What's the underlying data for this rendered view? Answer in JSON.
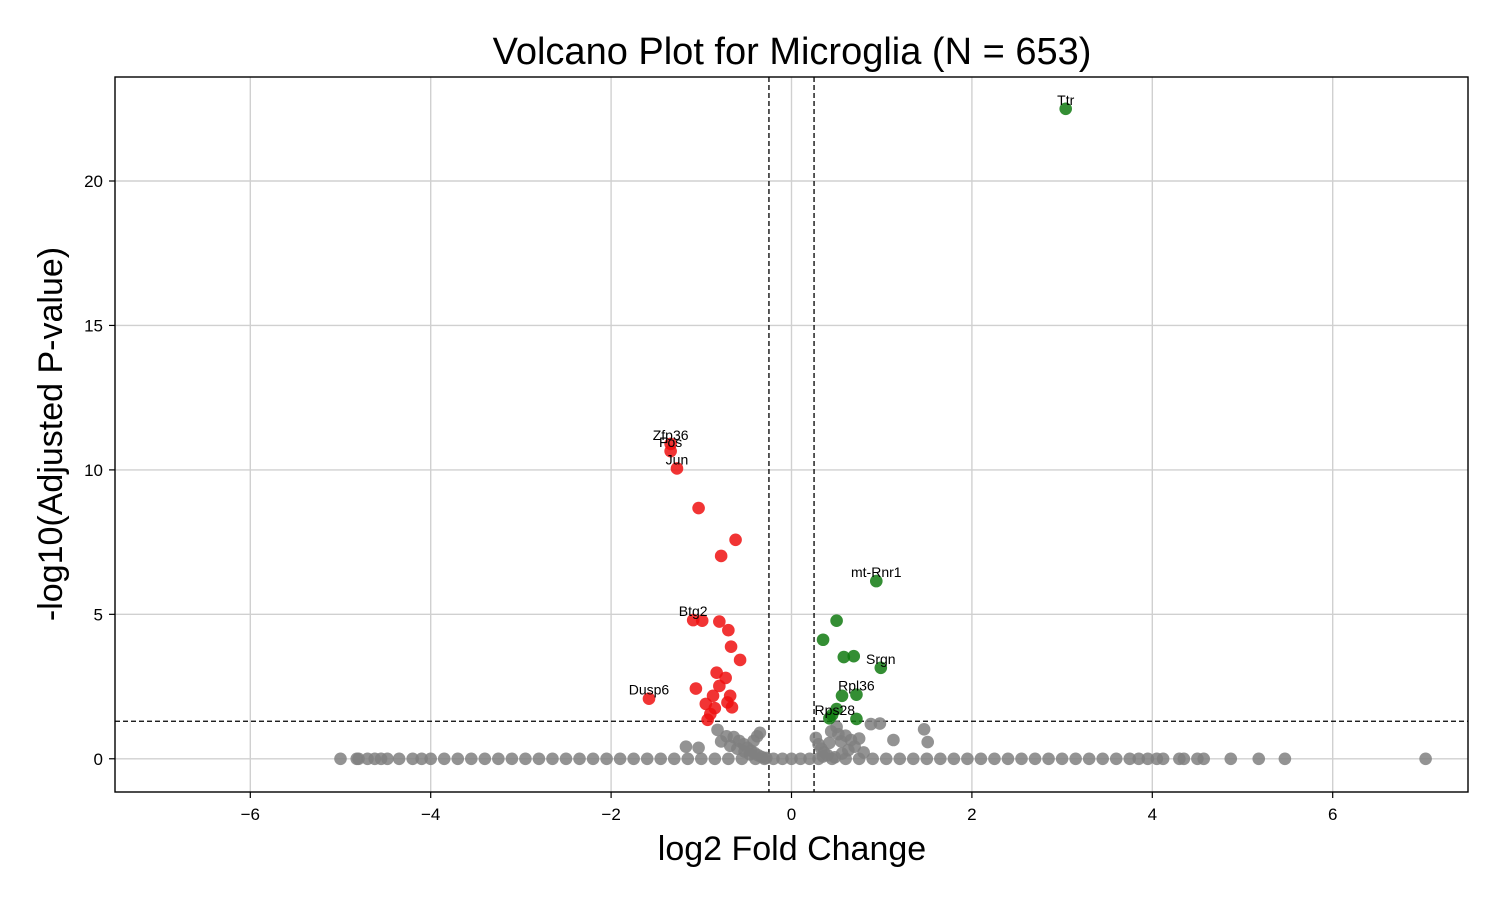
{
  "chart_data": {
    "type": "scatter",
    "title": "Volcano Plot for Microglia (N = 653)",
    "xlabel": "log2 Fold Change",
    "ylabel": "-log10(Adjusted P-value)",
    "xlim": [
      -7.5,
      7.5
    ],
    "ylim": [
      -1.15,
      23.6
    ],
    "x_ticks": [
      -6,
      -4,
      -2,
      0,
      2,
      4,
      6
    ],
    "y_ticks": [
      0,
      5,
      10,
      15,
      20
    ],
    "grid": true,
    "thresholds": {
      "fold_change": [
        -0.25,
        0.25
      ],
      "neg_log10_padj": 1.3
    },
    "colors": {
      "up": "#117a11",
      "down": "#ee1111",
      "ns": "#808080"
    },
    "labels": [
      {
        "text": "Ttr",
        "x": 3.04,
        "y": 22.5
      },
      {
        "text": "Zfp36",
        "x": -1.34,
        "y": 10.9
      },
      {
        "text": "Fos",
        "x": -1.34,
        "y": 10.65
      },
      {
        "text": "Jun",
        "x": -1.27,
        "y": 10.05
      },
      {
        "text": "mt-Rnr1",
        "x": 0.94,
        "y": 6.15
      },
      {
        "text": "Btg2",
        "x": -1.09,
        "y": 4.8
      },
      {
        "text": "Srgn",
        "x": 0.99,
        "y": 3.15
      },
      {
        "text": "Dusp6",
        "x": -1.58,
        "y": 2.08
      },
      {
        "text": "Rpl36",
        "x": 0.72,
        "y": 2.22
      },
      {
        "text": "Rps28",
        "x": 0.48,
        "y": 1.38
      }
    ],
    "series": [
      {
        "name": "up",
        "points": [
          [
            3.04,
            22.5
          ],
          [
            0.94,
            6.15
          ],
          [
            0.5,
            4.78
          ],
          [
            0.35,
            4.12
          ],
          [
            0.69,
            3.55
          ],
          [
            0.58,
            3.52
          ],
          [
            0.99,
            3.15
          ],
          [
            0.72,
            2.22
          ],
          [
            0.56,
            2.18
          ],
          [
            0.5,
            1.72
          ],
          [
            0.45,
            1.52
          ],
          [
            0.72,
            1.38
          ],
          [
            0.42,
            1.4
          ]
        ]
      },
      {
        "name": "down",
        "points": [
          [
            -1.34,
            10.9
          ],
          [
            -1.34,
            10.65
          ],
          [
            -1.27,
            10.05
          ],
          [
            -1.03,
            8.68
          ],
          [
            -0.62,
            7.58
          ],
          [
            -0.78,
            7.02
          ],
          [
            -1.09,
            4.8
          ],
          [
            -0.99,
            4.78
          ],
          [
            -0.8,
            4.75
          ],
          [
            -0.7,
            4.45
          ],
          [
            -0.67,
            3.88
          ],
          [
            -0.57,
            3.42
          ],
          [
            -0.83,
            2.98
          ],
          [
            -0.73,
            2.8
          ],
          [
            -0.8,
            2.52
          ],
          [
            -1.06,
            2.43
          ],
          [
            -0.87,
            2.18
          ],
          [
            -0.68,
            2.18
          ],
          [
            -1.58,
            2.08
          ],
          [
            -0.71,
            1.95
          ],
          [
            -0.95,
            1.9
          ],
          [
            -0.85,
            1.75
          ],
          [
            -0.66,
            1.78
          ],
          [
            -0.9,
            1.55
          ],
          [
            -0.93,
            1.35
          ]
        ]
      },
      {
        "name": "ns",
        "points": [
          [
            -5.0,
            0
          ],
          [
            -4.82,
            0
          ],
          [
            -4.8,
            0
          ],
          [
            -4.7,
            0
          ],
          [
            -4.62,
            0
          ],
          [
            -4.55,
            0
          ],
          [
            -4.48,
            0
          ],
          [
            -4.35,
            0
          ],
          [
            -4.2,
            0
          ],
          [
            -4.1,
            0
          ],
          [
            -4.0,
            0
          ],
          [
            -3.85,
            0
          ],
          [
            -3.7,
            0
          ],
          [
            -3.55,
            0
          ],
          [
            -3.4,
            0
          ],
          [
            -3.25,
            0
          ],
          [
            -3.1,
            0
          ],
          [
            -2.95,
            0
          ],
          [
            -2.8,
            0
          ],
          [
            -2.65,
            0
          ],
          [
            -2.5,
            0
          ],
          [
            -2.35,
            0
          ],
          [
            -2.2,
            0
          ],
          [
            -2.05,
            0
          ],
          [
            -1.9,
            0
          ],
          [
            -1.75,
            0
          ],
          [
            -1.6,
            0
          ],
          [
            -1.45,
            0
          ],
          [
            -1.3,
            0
          ],
          [
            -1.15,
            0
          ],
          [
            -1.0,
            0
          ],
          [
            -0.85,
            0
          ],
          [
            -0.7,
            0
          ],
          [
            -0.55,
            0
          ],
          [
            -0.4,
            0
          ],
          [
            -0.3,
            0
          ],
          [
            -0.2,
            0
          ],
          [
            -0.1,
            0
          ],
          [
            0.0,
            0
          ],
          [
            0.1,
            0
          ],
          [
            0.2,
            0
          ],
          [
            0.3,
            0
          ],
          [
            0.45,
            0
          ],
          [
            0.6,
            0
          ],
          [
            0.75,
            0
          ],
          [
            0.9,
            0
          ],
          [
            1.05,
            0
          ],
          [
            1.2,
            0
          ],
          [
            1.35,
            0
          ],
          [
            1.5,
            0
          ],
          [
            1.65,
            0
          ],
          [
            1.8,
            0
          ],
          [
            1.95,
            0
          ],
          [
            2.1,
            0
          ],
          [
            2.25,
            0
          ],
          [
            2.4,
            0
          ],
          [
            2.55,
            0
          ],
          [
            2.7,
            0
          ],
          [
            2.85,
            0
          ],
          [
            3.0,
            0
          ],
          [
            3.15,
            0
          ],
          [
            3.3,
            0
          ],
          [
            3.45,
            0
          ],
          [
            3.6,
            0
          ],
          [
            3.75,
            0
          ],
          [
            3.85,
            0
          ],
          [
            3.95,
            0
          ],
          [
            4.05,
            0
          ],
          [
            4.12,
            0
          ],
          [
            4.3,
            0
          ],
          [
            4.35,
            0
          ],
          [
            4.5,
            0
          ],
          [
            4.57,
            0
          ],
          [
            4.87,
            0
          ],
          [
            5.18,
            0
          ],
          [
            5.47,
            0
          ],
          [
            7.03,
            0
          ],
          [
            -1.17,
            0.42
          ],
          [
            -1.03,
            0.38
          ],
          [
            -0.82,
            1.0
          ],
          [
            -0.72,
            0.78
          ],
          [
            -0.64,
            0.75
          ],
          [
            -0.58,
            0.62
          ],
          [
            -0.53,
            0.5
          ],
          [
            -0.49,
            0.38
          ],
          [
            -0.45,
            0.28
          ],
          [
            -0.41,
            0.2
          ],
          [
            -0.37,
            0.12
          ],
          [
            -0.33,
            0.06
          ],
          [
            -0.78,
            0.6
          ],
          [
            -0.68,
            0.45
          ],
          [
            -0.6,
            0.35
          ],
          [
            -0.52,
            0.25
          ],
          [
            -0.46,
            0.15
          ],
          [
            -0.35,
            0.9
          ],
          [
            -0.38,
            0.78
          ],
          [
            -0.42,
            0.62
          ],
          [
            0.27,
            0.72
          ],
          [
            0.3,
            0.5
          ],
          [
            0.33,
            0.35
          ],
          [
            0.36,
            0.22
          ],
          [
            0.4,
            0.12
          ],
          [
            0.44,
            0.95
          ],
          [
            0.52,
            0.85
          ],
          [
            0.6,
            0.8
          ],
          [
            0.66,
            0.65
          ],
          [
            0.75,
            0.7
          ],
          [
            0.7,
            0.42
          ],
          [
            0.63,
            0.3
          ],
          [
            0.56,
            0.18
          ],
          [
            0.8,
            0.22
          ],
          [
            0.88,
            1.2
          ],
          [
            0.98,
            1.22
          ],
          [
            1.13,
            0.65
          ],
          [
            1.47,
            1.02
          ],
          [
            1.51,
            0.58
          ],
          [
            0.5,
            1.1
          ],
          [
            0.35,
            0.08
          ],
          [
            0.48,
            0.05
          ],
          [
            0.55,
            0.6
          ],
          [
            0.42,
            0.55
          ],
          [
            -0.28,
            0.03
          ]
        ]
      }
    ]
  }
}
